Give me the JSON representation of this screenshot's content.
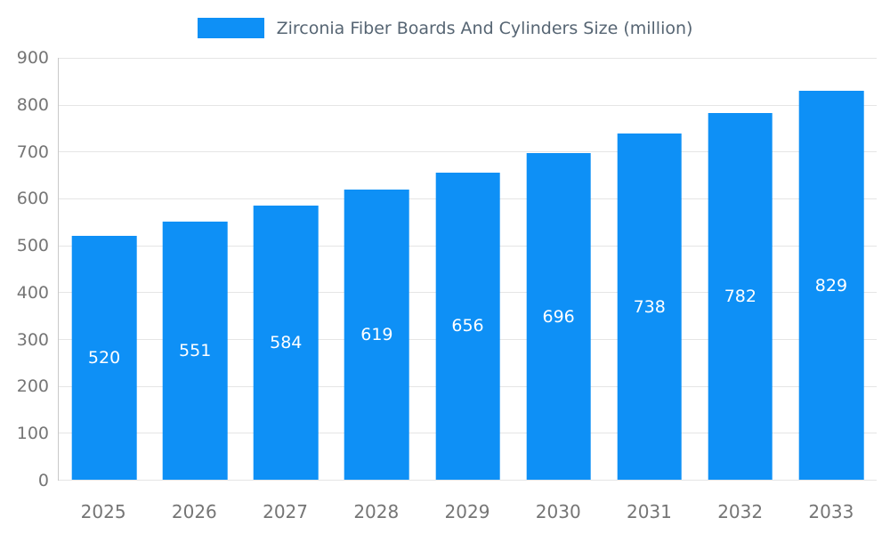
{
  "legend": {
    "label": "Zirconia Fiber Boards And Cylinders Size (million)"
  },
  "colors": {
    "bar": "#0e90f6",
    "axis_text": "#757575",
    "legend_text": "#566573",
    "gridline": "#e5e5e5",
    "value_label": "#ffffff"
  },
  "chart_data": {
    "type": "bar",
    "title": "Zirconia Fiber Boards And Cylinders Size (million)",
    "xlabel": "",
    "ylabel": "",
    "categories": [
      "2025",
      "2026",
      "2027",
      "2028",
      "2029",
      "2030",
      "2031",
      "2032",
      "2033"
    ],
    "values": [
      520,
      551,
      584,
      619,
      656,
      696,
      738,
      782,
      829
    ],
    "series_name": "Zirconia Fiber Boards And Cylinders Size (million)",
    "ylim": [
      0,
      900
    ],
    "ytick_step": 100,
    "grid": true,
    "legend_position": "top",
    "bar_color": "#0e90f6",
    "value_labels_inside_bars": true
  }
}
